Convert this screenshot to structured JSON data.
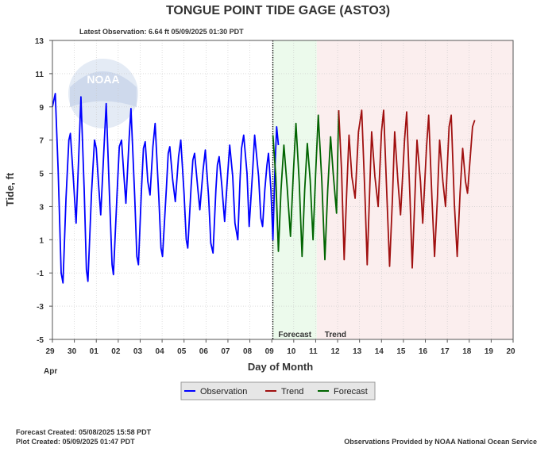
{
  "chart_data": {
    "type": "line",
    "title": "TONGUE POINT TIDE GAGE  (ASTO3)",
    "subtitle": "Latest Observation: 6.64 ft 05/09/2025 01:30 PDT",
    "xlabel": "Day of Month",
    "ylabel": "Tide, ft",
    "month_label": "Apr",
    "x_tick_labels": [
      "29",
      "30",
      "01",
      "02",
      "03",
      "04",
      "05",
      "06",
      "07",
      "08",
      "09",
      "10",
      "11",
      "12",
      "13",
      "14",
      "15",
      "16",
      "17",
      "18",
      "19",
      "20"
    ],
    "x_range_days": [
      0,
      21
    ],
    "ylim": [
      -5,
      13
    ],
    "y_ticks": [
      -5,
      -3,
      -1,
      1,
      3,
      5,
      7,
      9,
      11,
      13
    ],
    "grid": true,
    "legend_position": "bottom-center",
    "regions": [
      {
        "label": "Forecast",
        "start_day": 10.05,
        "end_day": 12.05,
        "color": "#ecfaec"
      },
      {
        "label": "Trend",
        "start_day": 12.05,
        "end_day": 21,
        "color": "#fbeeee"
      }
    ],
    "series": [
      {
        "name": "Observation",
        "color": "#0000ff",
        "points": [
          [
            0.0,
            9.0
          ],
          [
            0.13,
            9.8
          ],
          [
            0.26,
            5.2
          ],
          [
            0.4,
            -1.0
          ],
          [
            0.48,
            -1.6
          ],
          [
            0.62,
            3.5
          ],
          [
            0.75,
            7.0
          ],
          [
            0.82,
            7.4
          ],
          [
            0.95,
            4.8
          ],
          [
            1.08,
            2.0
          ],
          [
            1.2,
            6.0
          ],
          [
            1.3,
            9.6
          ],
          [
            1.45,
            4.0
          ],
          [
            1.55,
            -0.8
          ],
          [
            1.62,
            -1.5
          ],
          [
            1.78,
            3.8
          ],
          [
            1.92,
            7.0
          ],
          [
            2.0,
            6.5
          ],
          [
            2.1,
            4.4
          ],
          [
            2.2,
            2.5
          ],
          [
            2.35,
            6.5
          ],
          [
            2.45,
            9.2
          ],
          [
            2.6,
            3.7
          ],
          [
            2.72,
            -0.5
          ],
          [
            2.78,
            -1.1
          ],
          [
            2.95,
            3.9
          ],
          [
            3.05,
            6.6
          ],
          [
            3.15,
            7.0
          ],
          [
            3.25,
            5.0
          ],
          [
            3.35,
            3.2
          ],
          [
            3.5,
            7.2
          ],
          [
            3.58,
            8.9
          ],
          [
            3.75,
            3.6
          ],
          [
            3.85,
            0.0
          ],
          [
            3.92,
            -0.5
          ],
          [
            4.05,
            3.8
          ],
          [
            4.15,
            6.5
          ],
          [
            4.23,
            6.9
          ],
          [
            4.35,
            4.5
          ],
          [
            4.45,
            3.7
          ],
          [
            4.58,
            6.6
          ],
          [
            4.68,
            8.0
          ],
          [
            4.85,
            3.5
          ],
          [
            4.95,
            0.5
          ],
          [
            5.02,
            0.0
          ],
          [
            5.2,
            4.2
          ],
          [
            5.28,
            6.2
          ],
          [
            5.35,
            6.6
          ],
          [
            5.48,
            4.6
          ],
          [
            5.6,
            3.3
          ],
          [
            5.75,
            6.0
          ],
          [
            5.85,
            7.0
          ],
          [
            6.0,
            3.8
          ],
          [
            6.1,
            1.0
          ],
          [
            6.17,
            0.5
          ],
          [
            6.32,
            4.2
          ],
          [
            6.4,
            5.8
          ],
          [
            6.48,
            6.2
          ],
          [
            6.62,
            4.2
          ],
          [
            6.72,
            2.8
          ],
          [
            6.87,
            5.2
          ],
          [
            6.97,
            6.4
          ],
          [
            7.12,
            3.6
          ],
          [
            7.22,
            0.8
          ],
          [
            7.32,
            0.2
          ],
          [
            7.45,
            4.0
          ],
          [
            7.52,
            5.5
          ],
          [
            7.6,
            6.0
          ],
          [
            7.72,
            4.3
          ],
          [
            7.85,
            2.1
          ],
          [
            8.0,
            5.2
          ],
          [
            8.08,
            6.7
          ],
          [
            8.22,
            4.8
          ],
          [
            8.32,
            2.0
          ],
          [
            8.45,
            1.0
          ],
          [
            8.55,
            4.5
          ],
          [
            8.62,
            6.5
          ],
          [
            8.72,
            7.3
          ],
          [
            8.87,
            5.0
          ],
          [
            8.97,
            1.8
          ],
          [
            9.12,
            5.0
          ],
          [
            9.22,
            7.3
          ],
          [
            9.4,
            4.8
          ],
          [
            9.5,
            2.3
          ],
          [
            9.58,
            1.8
          ],
          [
            9.68,
            4.0
          ],
          [
            9.78,
            5.5
          ],
          [
            9.85,
            6.2
          ],
          [
            9.96,
            4.0
          ],
          [
            10.05,
            1.0
          ],
          [
            10.15,
            5.5
          ],
          [
            10.22,
            7.8
          ],
          [
            10.3,
            6.7
          ]
        ]
      },
      {
        "name": "Forecast",
        "color": "#006400",
        "points": [
          [
            10.05,
            7.3
          ],
          [
            10.18,
            4.8
          ],
          [
            10.3,
            0.3
          ],
          [
            10.42,
            4.0
          ],
          [
            10.55,
            6.7
          ],
          [
            10.7,
            4.2
          ],
          [
            10.85,
            1.2
          ],
          [
            10.98,
            5.0
          ],
          [
            11.1,
            8.0
          ],
          [
            11.25,
            4.5
          ],
          [
            11.38,
            0.0
          ],
          [
            11.5,
            4.0
          ],
          [
            11.62,
            6.8
          ],
          [
            11.75,
            4.6
          ],
          [
            11.88,
            1.0
          ],
          [
            12.0,
            5.0
          ],
          [
            12.12,
            8.5
          ],
          [
            12.28,
            4.5
          ],
          [
            12.42,
            -0.2
          ],
          [
            12.55,
            4.0
          ],
          [
            12.68,
            7.2
          ],
          [
            12.8,
            5.0
          ],
          [
            12.95,
            2.6
          ],
          [
            13.05,
            8.8
          ]
        ]
      },
      {
        "name": "Trend",
        "color": "#a01010",
        "points": [
          [
            13.05,
            8.8
          ],
          [
            13.18,
            5.2
          ],
          [
            13.3,
            -0.2
          ],
          [
            13.42,
            4.0
          ],
          [
            13.52,
            7.3
          ],
          [
            13.65,
            4.8
          ],
          [
            13.8,
            3.5
          ],
          [
            13.95,
            7.5
          ],
          [
            14.1,
            8.8
          ],
          [
            14.25,
            3.5
          ],
          [
            14.35,
            -0.5
          ],
          [
            14.45,
            3.5
          ],
          [
            14.55,
            7.5
          ],
          [
            14.7,
            4.8
          ],
          [
            14.85,
            3.0
          ],
          [
            15.0,
            7.5
          ],
          [
            15.1,
            8.8
          ],
          [
            15.25,
            3.5
          ],
          [
            15.37,
            -0.6
          ],
          [
            15.5,
            3.5
          ],
          [
            15.6,
            7.5
          ],
          [
            15.75,
            4.5
          ],
          [
            15.87,
            2.5
          ],
          [
            16.05,
            7.0
          ],
          [
            16.15,
            8.7
          ],
          [
            16.3,
            3.5
          ],
          [
            16.4,
            -0.7
          ],
          [
            16.52,
            3.5
          ],
          [
            16.62,
            7.0
          ],
          [
            16.78,
            4.5
          ],
          [
            16.88,
            2.0
          ],
          [
            17.05,
            6.5
          ],
          [
            17.15,
            8.5
          ],
          [
            17.3,
            3.5
          ],
          [
            17.42,
            0.0
          ],
          [
            17.55,
            3.5
          ],
          [
            17.65,
            7.0
          ],
          [
            17.8,
            4.5
          ],
          [
            17.92,
            3.0
          ],
          [
            18.08,
            7.8
          ],
          [
            18.18,
            8.5
          ],
          [
            18.32,
            3.2
          ],
          [
            18.45,
            0.0
          ],
          [
            18.58,
            3.8
          ],
          [
            18.7,
            6.5
          ],
          [
            18.83,
            4.5
          ],
          [
            18.92,
            3.8
          ],
          [
            19.05,
            6.0
          ],
          [
            19.15,
            7.8
          ],
          [
            19.25,
            8.2
          ]
        ]
      }
    ],
    "legend": [
      "Observation",
      "Trend",
      "Forecast"
    ]
  },
  "footer": {
    "forecast_created": "Forecast Created: 05/08/2025 15:58 PDT",
    "plot_created": "Plot Created: 05/09/2025 01:47 PDT",
    "provider": "Observations Provided by NOAA National Ocean Service"
  },
  "watermark": {
    "text": "NOAA",
    "color": "#5577aa"
  }
}
